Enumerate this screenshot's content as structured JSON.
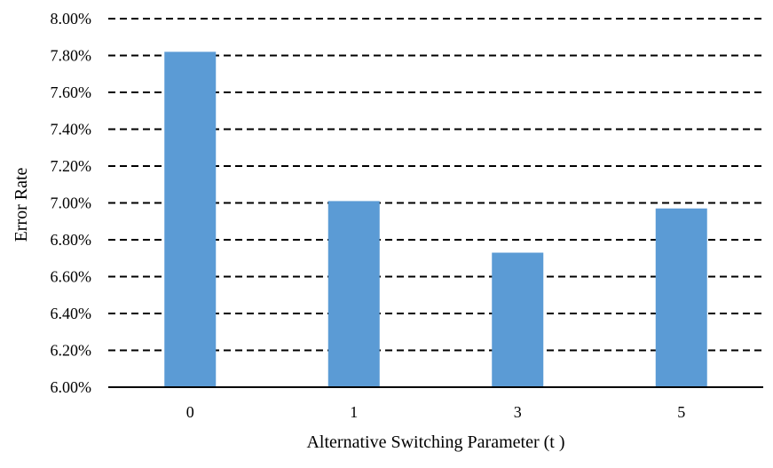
{
  "chart_data": {
    "type": "bar",
    "categories": [
      "0",
      "1",
      "3",
      "5"
    ],
    "values": [
      7.82,
      7.01,
      6.73,
      6.97
    ],
    "y_unit": "%",
    "xlabel": "Alternative Switching Parameter (t )",
    "ylabel": "Error Rate",
    "ylim": [
      6.0,
      8.0
    ],
    "yticks": [
      "6.00%",
      "6.20%",
      "6.40%",
      "6.60%",
      "6.80%",
      "7.00%",
      "7.20%",
      "7.40%",
      "7.60%",
      "7.80%",
      "8.00%"
    ],
    "grid": true,
    "legend": "none",
    "bar_color": "#5B9BD5"
  }
}
